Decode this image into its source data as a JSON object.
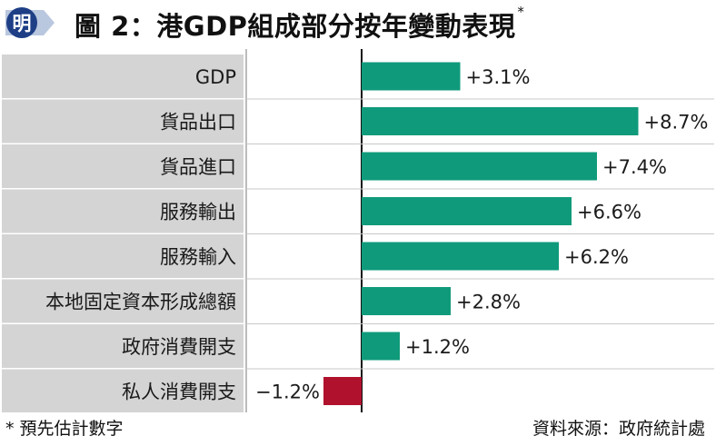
{
  "header": {
    "title": "圖 2：港GDP組成部分按年變動表現",
    "title_marker": "*",
    "logo_text": "明"
  },
  "chart_data": {
    "type": "bar",
    "orientation": "horizontal",
    "categories": [
      "GDP",
      "貨品出口",
      "貨品進口",
      "服務輸出",
      "服務輸入",
      "本地固定資本形成總額",
      "政府消費開支",
      "私人消費開支"
    ],
    "values": [
      3.1,
      8.7,
      7.4,
      6.6,
      6.2,
      2.8,
      1.2,
      -1.2
    ],
    "value_labels": [
      "+3.1%",
      "+8.7%",
      "+7.4%",
      "+6.6%",
      "+6.2%",
      "+2.8%",
      "+1.2%",
      "−1.2%"
    ],
    "unit": "%",
    "xlim": [
      -1.8,
      10
    ],
    "colors": {
      "positive": "#0f9a7b",
      "negative": "#b0122e",
      "row_label_bg": "#d4d4d4",
      "frame": "#777777"
    }
  },
  "footer": {
    "note": "* 預先估計數字",
    "source": "資料來源：政府統計處"
  }
}
